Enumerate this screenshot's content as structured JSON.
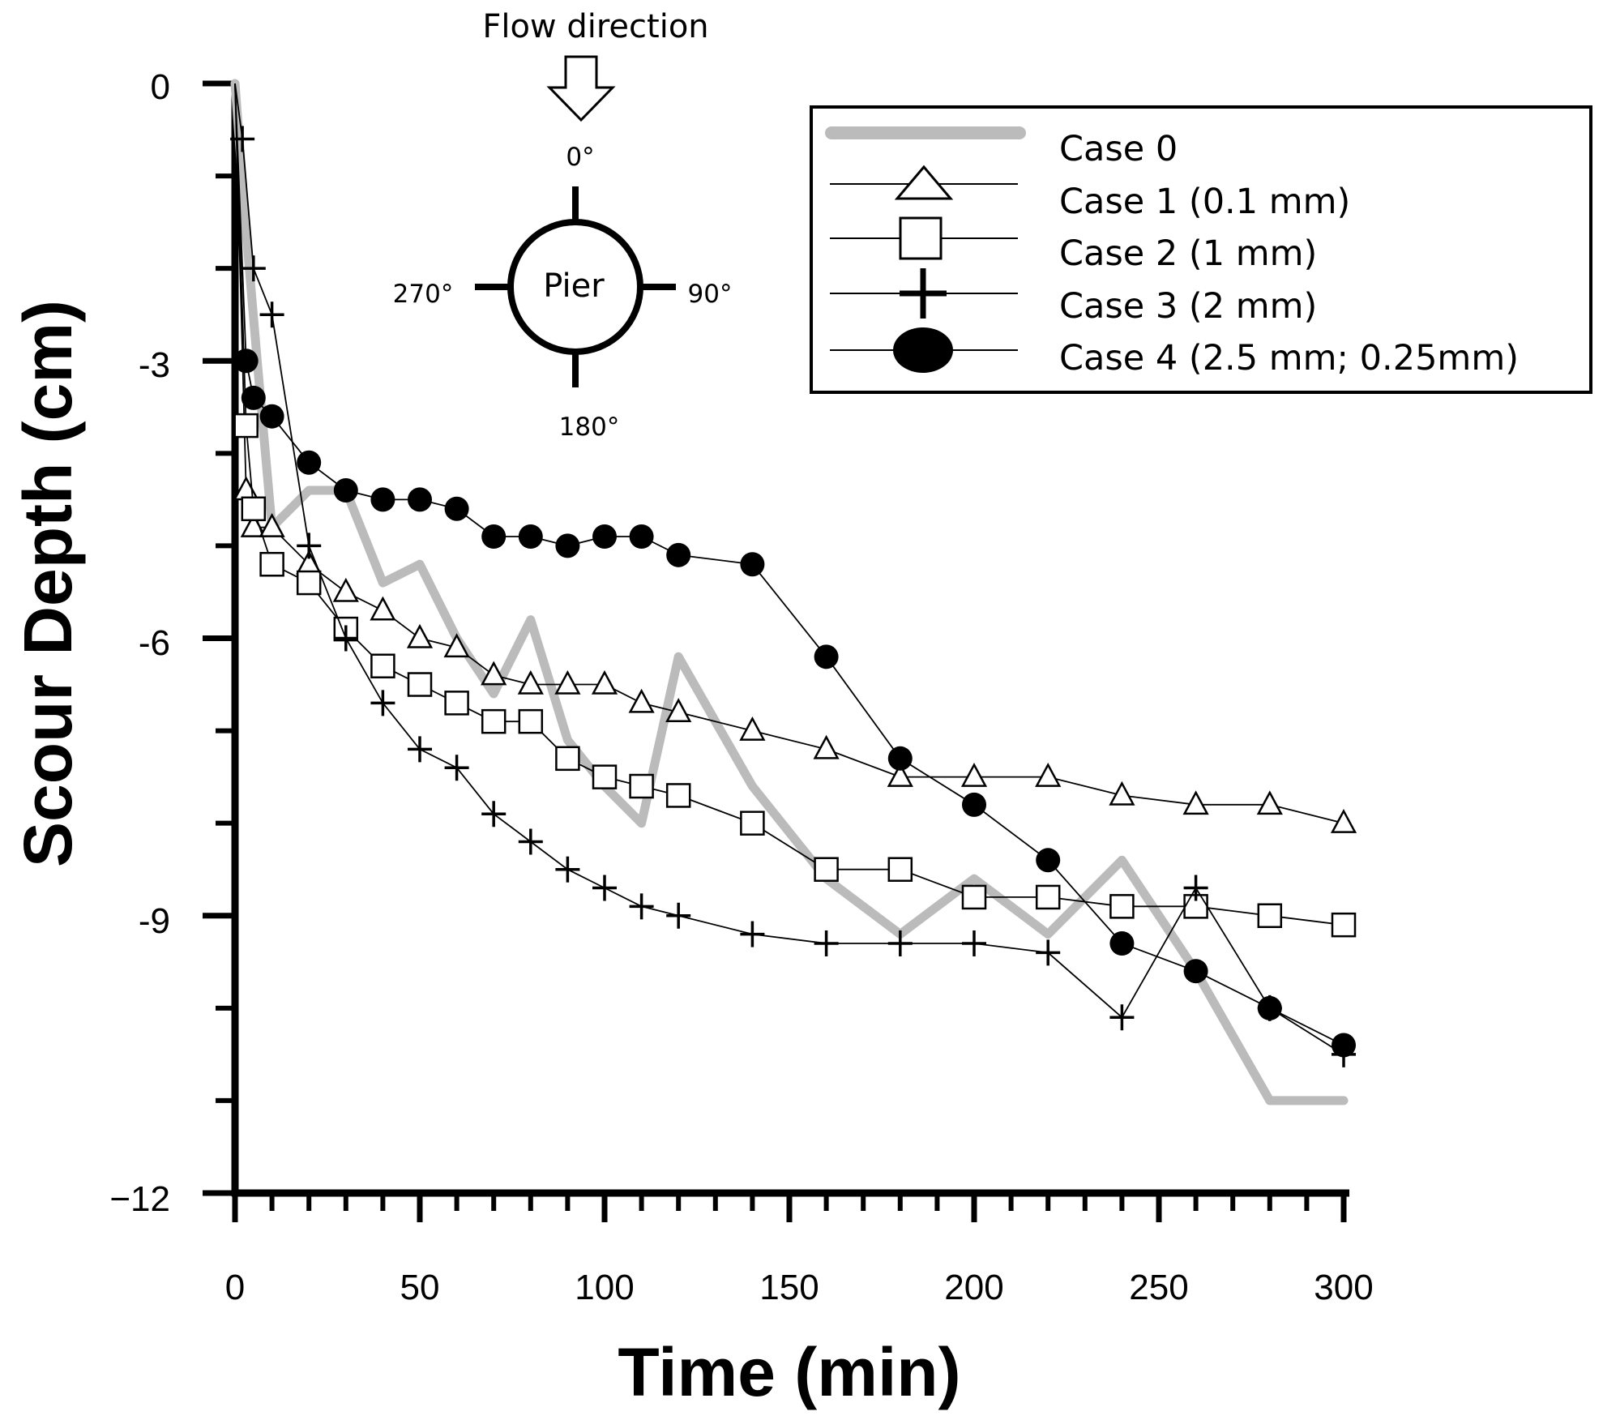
{
  "chart_data": {
    "type": "line",
    "xlabel": "Time (min)",
    "ylabel": "Scour Depth (cm)",
    "xlim": [
      0,
      300
    ],
    "ylim": [
      -12,
      0
    ],
    "x_ticks": [
      0,
      50,
      100,
      150,
      200,
      250,
      300
    ],
    "y_ticks": [
      0,
      -3,
      -6,
      -9,
      -12
    ],
    "y_tick_labels": [
      "0",
      "-3",
      "-6",
      "-9",
      "−12"
    ],
    "grid": false,
    "legend_position": "top-right",
    "series": [
      {
        "name": "Case 0",
        "marker": "none",
        "color": "#bbbbbb",
        "x": [
          0,
          3,
          6,
          10,
          20,
          30,
          40,
          50,
          60,
          70,
          80,
          90,
          100,
          110,
          120,
          140,
          160,
          180,
          200,
          220,
          240,
          260,
          280,
          300
        ],
        "y": [
          0,
          -1.6,
          -3.0,
          -4.8,
          -4.4,
          -4.4,
          -5.4,
          -5.2,
          -6.0,
          -6.6,
          -5.8,
          -7.1,
          -7.6,
          -8.0,
          -6.2,
          -7.6,
          -8.6,
          -9.2,
          -8.6,
          -9.2,
          -8.4,
          -9.6,
          -11.0,
          -11.0
        ]
      },
      {
        "name": "Case 1 (0.1 mm)",
        "marker": "triangle",
        "color": "#000000",
        "x": [
          0,
          3,
          5,
          10,
          20,
          30,
          40,
          50,
          60,
          70,
          80,
          90,
          100,
          110,
          120,
          140,
          160,
          180,
          200,
          220,
          240,
          260,
          280,
          300
        ],
        "y": [
          0,
          -4.4,
          -4.8,
          -4.8,
          -5.2,
          -5.5,
          -5.7,
          -6.0,
          -6.1,
          -6.4,
          -6.5,
          -6.5,
          -6.5,
          -6.7,
          -6.8,
          -7.0,
          -7.2,
          -7.5,
          -7.5,
          -7.5,
          -7.7,
          -7.8,
          -7.8,
          -8.0
        ]
      },
      {
        "name": "Case 2 (1 mm)",
        "marker": "square",
        "color": "#000000",
        "x": [
          0,
          3,
          5,
          10,
          20,
          30,
          40,
          50,
          60,
          70,
          80,
          90,
          100,
          110,
          120,
          140,
          160,
          180,
          200,
          220,
          240,
          260,
          280,
          300
        ],
        "y": [
          0,
          -3.7,
          -4.6,
          -5.2,
          -5.4,
          -5.9,
          -6.3,
          -6.5,
          -6.7,
          -6.9,
          -6.9,
          -7.3,
          -7.5,
          -7.6,
          -7.7,
          -8.0,
          -8.5,
          -8.5,
          -8.8,
          -8.8,
          -8.9,
          -8.9,
          -9.0,
          -9.1
        ]
      },
      {
        "name": "Case 3 (2 mm)",
        "marker": "plus",
        "color": "#000000",
        "x": [
          0,
          2,
          5,
          10,
          20,
          30,
          40,
          50,
          60,
          70,
          80,
          90,
          100,
          110,
          120,
          140,
          160,
          180,
          200,
          220,
          240,
          260,
          280,
          300
        ],
        "y": [
          0,
          -0.6,
          -2.0,
          -2.5,
          -5.0,
          -6.0,
          -6.7,
          -7.2,
          -7.4,
          -7.9,
          -8.2,
          -8.5,
          -8.7,
          -8.9,
          -9.0,
          -9.2,
          -9.3,
          -9.3,
          -9.3,
          -9.4,
          -10.1,
          -8.7,
          -10.0,
          -10.5
        ]
      },
      {
        "name": "Case 4  (2.5 mm; 0.25mm)",
        "marker": "circle",
        "color": "#000000",
        "x": [
          0,
          3,
          5,
          10,
          20,
          30,
          40,
          50,
          60,
          70,
          80,
          90,
          100,
          110,
          120,
          140,
          160,
          180,
          200,
          220,
          240,
          260,
          280,
          300
        ],
        "y": [
          0,
          -3.0,
          -3.4,
          -3.6,
          -4.1,
          -4.4,
          -4.5,
          -4.5,
          -4.6,
          -4.9,
          -4.9,
          -5.0,
          -4.9,
          -4.9,
          -5.1,
          -5.2,
          -6.2,
          -7.3,
          -7.8,
          -8.4,
          -9.3,
          -9.6,
          -10.0,
          -10.4
        ]
      }
    ],
    "inset": {
      "flow_label": "Flow direction",
      "center_label": "Pier",
      "angle_labels": {
        "top": "0°",
        "right": "90°",
        "bottom": "180°",
        "left": "270°"
      }
    }
  }
}
